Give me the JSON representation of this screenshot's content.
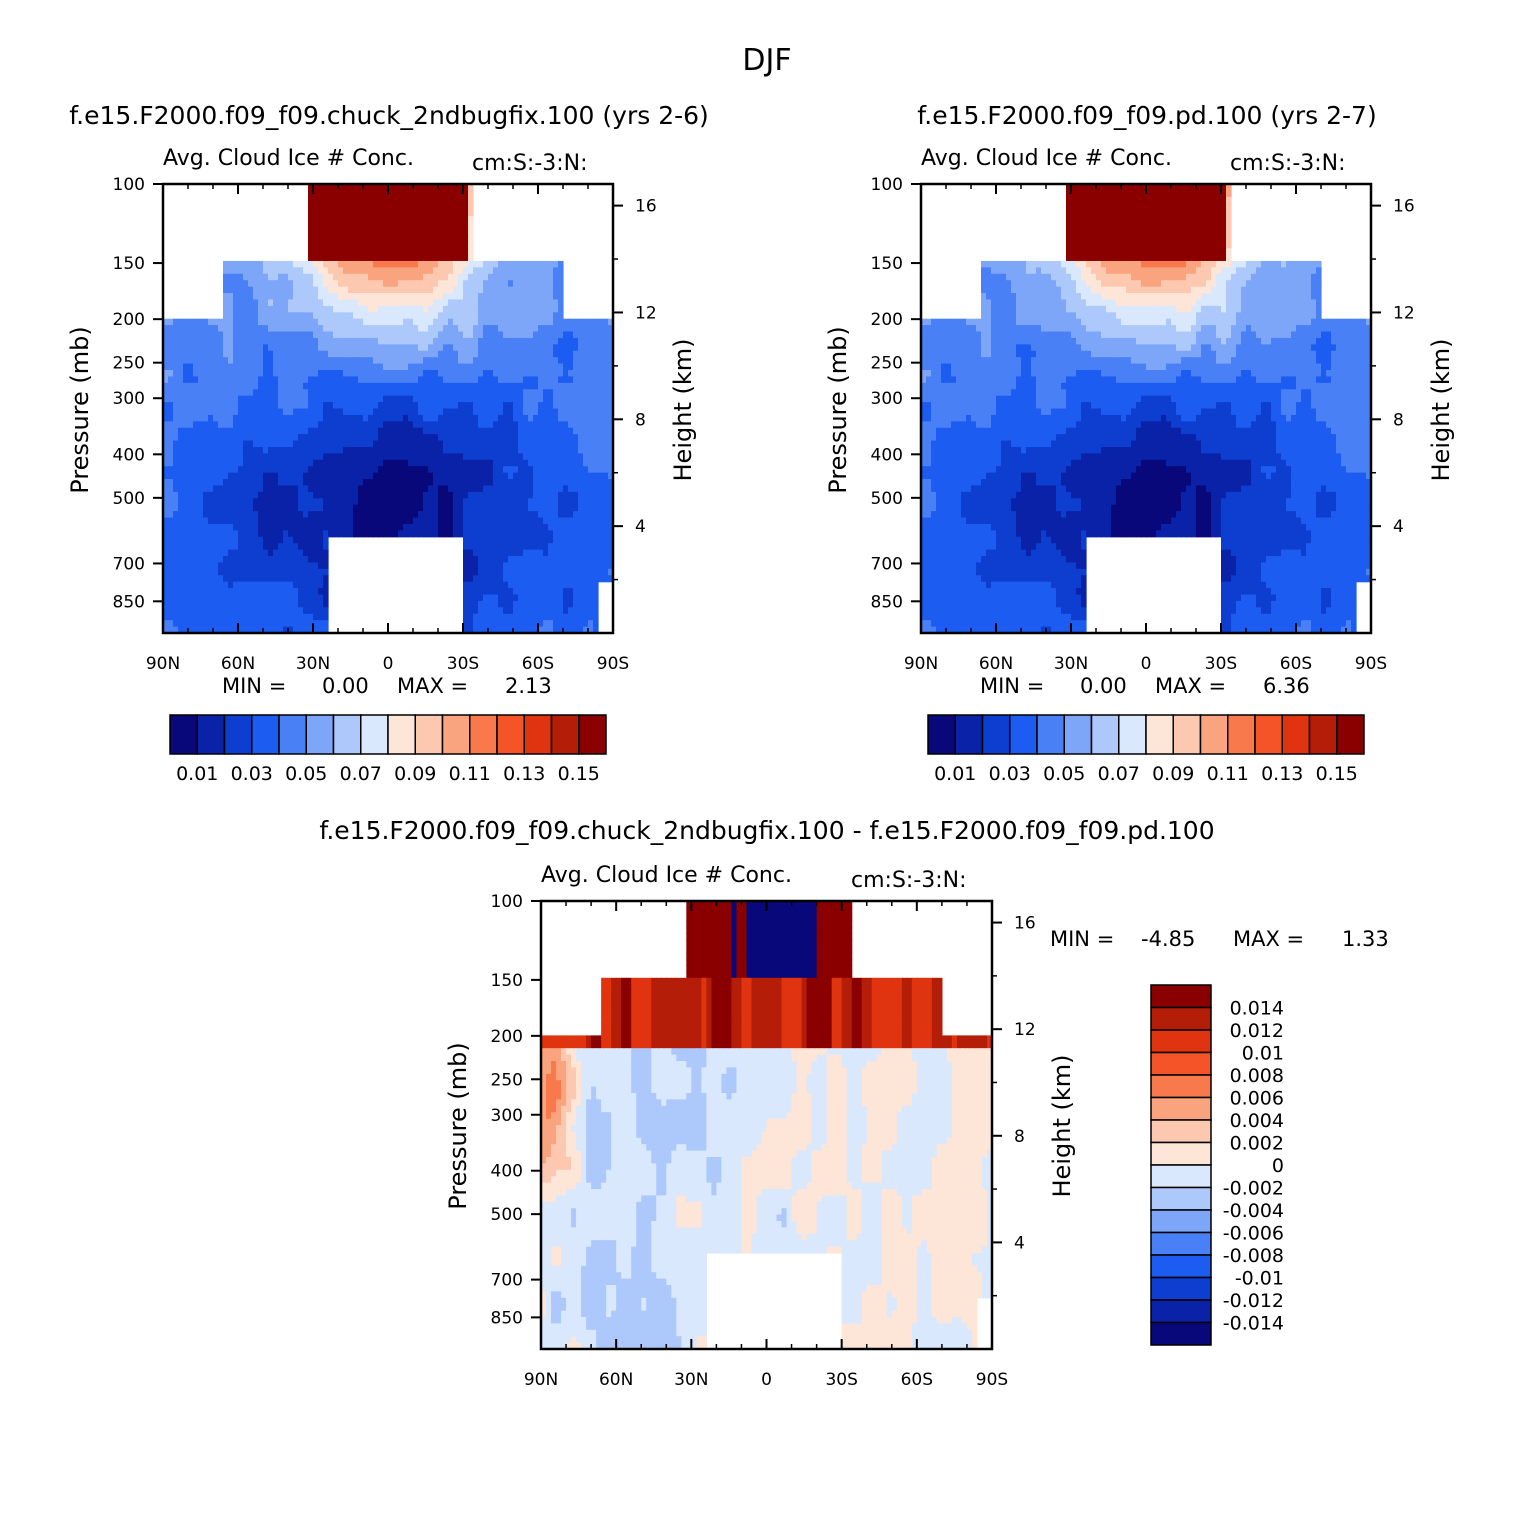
{
  "figure": {
    "title": "DJF"
  },
  "panels": [
    {
      "id": "case",
      "run_title": "f.e15.F2000.f09_f09.chuck_2ndbugfix.100 (yrs 2-6)",
      "variable": "Avg. Cloud Ice # Conc.",
      "units": "cm:S:-3:N:",
      "ylabel": "Pressure (mb)",
      "ylabel_right": "Height (km)",
      "min_label": "MIN =",
      "min_value": "0.00",
      "max_label": "MAX =",
      "max_value": "2.13",
      "colorbar_labels": [
        "0.01",
        "0.03",
        "0.05",
        "0.07",
        "0.09",
        "0.11",
        "0.13",
        "0.15"
      ]
    },
    {
      "id": "control",
      "run_title": "f.e15.F2000.f09_f09.pd.100 (yrs 2-7)",
      "variable": "Avg. Cloud Ice # Conc.",
      "units": "cm:S:-3:N:",
      "ylabel": "Pressure (mb)",
      "ylabel_right": "Height (km)",
      "min_label": "MIN =",
      "min_value": "0.00",
      "max_label": "MAX =",
      "max_value": "6.36",
      "colorbar_labels": [
        "0.01",
        "0.03",
        "0.05",
        "0.07",
        "0.09",
        "0.11",
        "0.13",
        "0.15"
      ]
    },
    {
      "id": "diff",
      "run_title": "f.e15.F2000.f09_f09.chuck_2ndbugfix.100 - f.e15.F2000.f09_f09.pd.100",
      "variable": "Avg. Cloud Ice # Conc.",
      "units": "cm:S:-3:N:",
      "ylabel": "Pressure (mb)",
      "ylabel_right": "Height (km)",
      "min_label": "MIN =",
      "min_value": "-4.85",
      "max_label": "MAX =",
      "max_value": "1.33",
      "colorbar_labels": [
        "0.014",
        "0.012",
        "0.01",
        "0.008",
        "0.006",
        "0.004",
        "0.002",
        "0",
        "-0.002",
        "-0.004",
        "-0.006",
        "-0.008",
        "-0.01",
        "-0.012",
        "-0.014"
      ]
    }
  ],
  "colors": {
    "seq16": [
      "#08087a",
      "#0a22a8",
      "#0d3ecf",
      "#1d5cf0",
      "#4a80f5",
      "#7ea6f8",
      "#adc8fb",
      "#d9e8fd",
      "#fde5d7",
      "#fcc8b0",
      "#f9a47e",
      "#f87a4c",
      "#f55428",
      "#e03410",
      "#b41e08",
      "#8a0000"
    ],
    "diff16": [
      "#08087a",
      "#0a22a8",
      "#0d3ecf",
      "#1d5cf0",
      "#4a80f5",
      "#7ea6f8",
      "#adc8fb",
      "#d9e8fd",
      "#fde5d7",
      "#fcc8b0",
      "#f9a47e",
      "#f87a4c",
      "#f55428",
      "#e03410",
      "#b41e08",
      "#8a0000"
    ]
  },
  "chart_data": [
    {
      "type": "heatmap",
      "panel": "case",
      "title": "Avg. Cloud Ice # Conc.",
      "xlabel": "",
      "ylabel": "Pressure (mb)",
      "ylabel_right": "Height (km)",
      "x_ticks": [
        "90N",
        "60N",
        "30N",
        "0",
        "30S",
        "60S",
        "90S"
      ],
      "x_range": [
        90,
        -90
      ],
      "y_ticks": [
        100,
        150,
        200,
        250,
        300,
        400,
        500,
        700,
        850
      ],
      "y_range": [
        100,
        1000
      ],
      "y_scale": "log",
      "right_ticks": [
        16,
        12,
        8,
        4
      ],
      "levels": [
        0.01,
        0.02,
        0.03,
        0.04,
        0.05,
        0.06,
        0.07,
        0.08,
        0.09,
        0.1,
        0.11,
        0.12,
        0.13,
        0.14,
        0.15
      ],
      "min": 0.0,
      "max": 2.13
    },
    {
      "type": "heatmap",
      "panel": "control",
      "title": "Avg. Cloud Ice # Conc.",
      "xlabel": "",
      "ylabel": "Pressure (mb)",
      "ylabel_right": "Height (km)",
      "x_ticks": [
        "90N",
        "60N",
        "30N",
        "0",
        "30S",
        "60S",
        "90S"
      ],
      "x_range": [
        90,
        -90
      ],
      "y_ticks": [
        100,
        150,
        200,
        250,
        300,
        400,
        500,
        700,
        850
      ],
      "y_range": [
        100,
        1000
      ],
      "y_scale": "log",
      "right_ticks": [
        16,
        12,
        8,
        4
      ],
      "levels": [
        0.01,
        0.02,
        0.03,
        0.04,
        0.05,
        0.06,
        0.07,
        0.08,
        0.09,
        0.1,
        0.11,
        0.12,
        0.13,
        0.14,
        0.15
      ],
      "min": 0.0,
      "max": 6.36
    },
    {
      "type": "heatmap",
      "panel": "diff",
      "title": "Avg. Cloud Ice # Conc.",
      "xlabel": "",
      "ylabel": "Pressure (mb)",
      "ylabel_right": "Height (km)",
      "x_ticks": [
        "90N",
        "60N",
        "30N",
        "0",
        "30S",
        "60S",
        "90S"
      ],
      "x_range": [
        90,
        -90
      ],
      "y_ticks": [
        100,
        150,
        200,
        250,
        300,
        400,
        500,
        700,
        850
      ],
      "y_range": [
        100,
        1000
      ],
      "y_scale": "log",
      "right_ticks": [
        16,
        12,
        8,
        4
      ],
      "levels": [
        -0.014,
        -0.012,
        -0.01,
        -0.008,
        -0.006,
        -0.004,
        -0.002,
        0,
        0.002,
        0.004,
        0.006,
        0.008,
        0.01,
        0.012,
        0.014
      ],
      "min": -4.85,
      "max": 1.33
    }
  ]
}
